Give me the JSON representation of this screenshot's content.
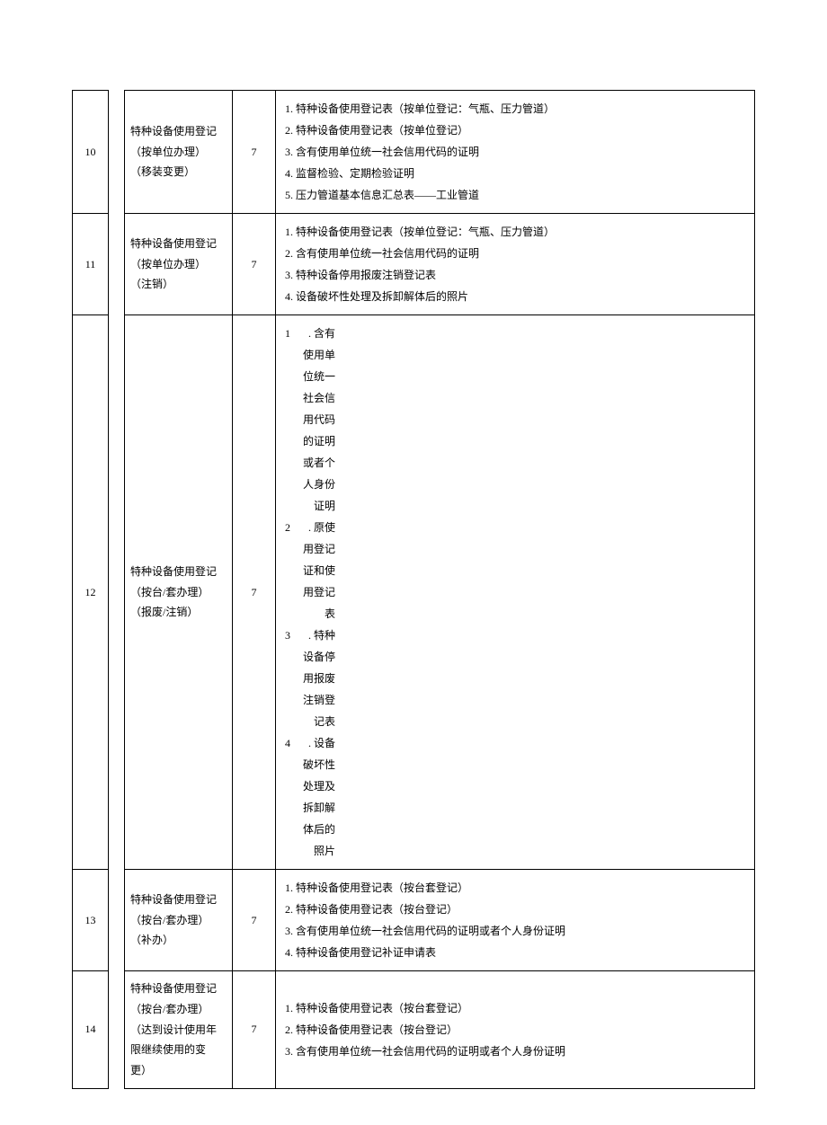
{
  "rows": [
    {
      "num": "10",
      "name_l1": "特种设备使用登记",
      "name_l2": "（按单位办理）",
      "name_l3": "（移装变更）",
      "days": "7",
      "content_l1": "1. 特种设备使用登记表（按单位登记：气瓶、压力管道）",
      "content_l2": "2. 特种设备使用登记表（按单位登记）",
      "content_l3": "3. 含有使用单位统一社会信用代码的证明",
      "content_l4": "4. 监督检验、定期检验证明",
      "content_l5": "5. 压力管道基本信息汇总表——工业管道"
    },
    {
      "num": "11",
      "name_l1": "特种设备使用登记",
      "name_l2": "（按单位办理）",
      "name_l3": "（注销）",
      "days": "7",
      "content_l1": "1. 特种设备使用登记表（按单位登记：气瓶、压力管道）",
      "content_l2": "2. 含有使用单位统一社会信用代码的证明",
      "content_l3": "3. 特种设备停用报废注销登记表",
      "content_l4": "4. 设备破坏性处理及拆卸解体后的照片"
    },
    {
      "num": "12",
      "name_l1": "特种设备使用登记",
      "name_l2": "（按台/套办理）",
      "name_l3": "（报废/注销）",
      "days": "7",
      "i1_n": "1",
      "i1_t": ". 含有使用单位统一社会信用代码的证明或者个人身份证明",
      "i2_n": "2",
      "i2_t": ". 原使用登记证和使用登记表",
      "i3_n": "3",
      "i3_t": ". 特种设备停用报废注销登记表",
      "i4_n": "4",
      "i4_t": ". 设备破坏性处理及拆卸解体后的照片"
    },
    {
      "num": "13",
      "name_l1": "特种设备使用登记",
      "name_l2": "（按台/套办理）",
      "name_l3": "（补办）",
      "days": "7",
      "content_l1": "1. 特种设备使用登记表（按台套登记）",
      "content_l2": "2. 特种设备使用登记表（按台登记）",
      "content_l3": "3. 含有使用单位统一社会信用代码的证明或者个人身份证明",
      "content_l4": "4. 特种设备使用登记补证申请表"
    },
    {
      "num": "14",
      "name_l1": "特种设备使用登记",
      "name_l2": "（按台/套办理）",
      "name_l3": "（达到设计使用年",
      "name_l4": "限继续使用的变",
      "name_l5": "更）",
      "days": "7",
      "content_l1": "1. 特种设备使用登记表（按台套登记）",
      "content_l2": "2. 特种设备使用登记表（按台登记）",
      "content_l3": "3. 含有使用单位统一社会信用代码的证明或者个人身份证明"
    }
  ]
}
